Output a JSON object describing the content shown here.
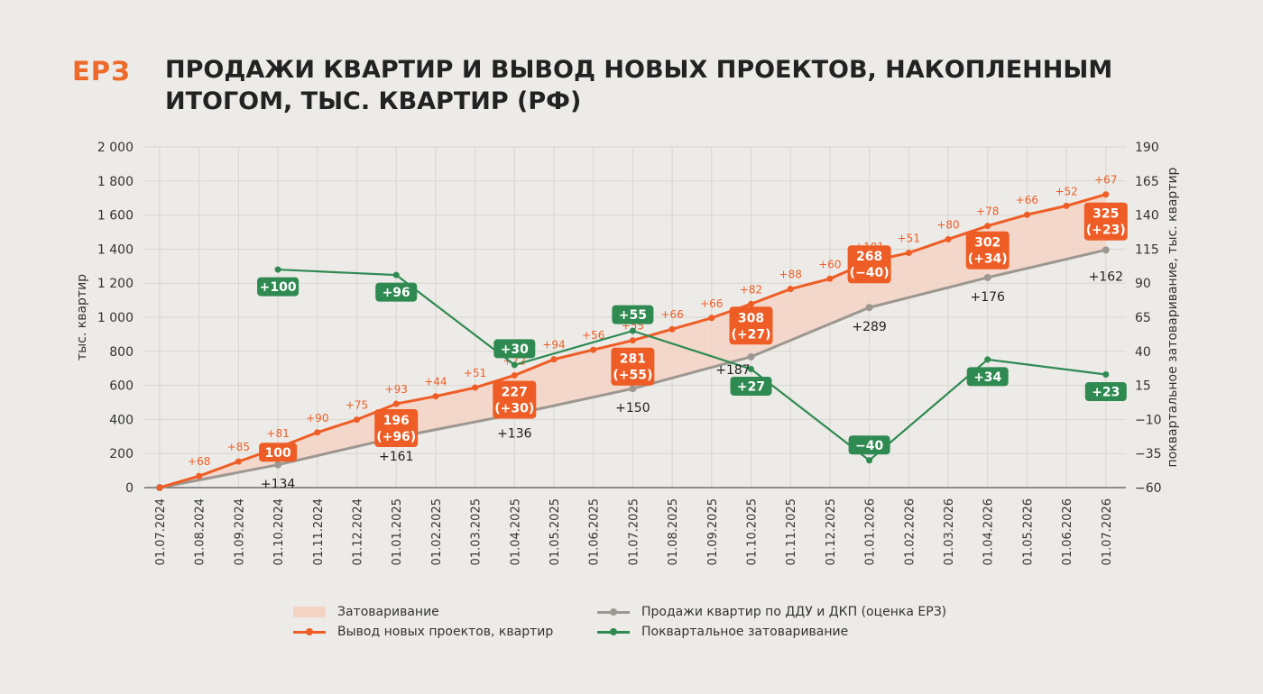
{
  "header": {
    "logo": "ЕРЗ",
    "title": "ПРОДАЖИ КВАРТИР И ВЫВОД НОВЫХ ПРОЕКТОВ, НАКОПЛЕННЫМ ИТОГОМ, ТЫС. КВАРТИР (РФ)"
  },
  "legend": {
    "overstock": "Затоваривание",
    "launches": "Вывод новых проектов, квартир",
    "sales": "Продажи квартир по ДДУ и ДКП (оценка ЕРЗ)",
    "quarterly": "Поквартальное затоваривание"
  },
  "colors": {
    "launches": "#ee5d25",
    "sales": "#9d9791",
    "quarterly": "#2f8a52",
    "fill": "#f3d3c4",
    "grid": "#d9d6d1"
  },
  "chart_data": {
    "type": "line",
    "title": "ПРОДАЖИ КВАРТИР И ВЫВОД НОВЫХ ПРОЕКТОВ, НАКОПЛЕННЫМ ИТОГОМ, ТЫС. КВАРТИР (РФ)",
    "ylabel_left": "тыс. квартир",
    "ylabel_right": "поквартальное затоваривание, тыс. квартир",
    "ylim_left": [
      0,
      2000
    ],
    "yticks_left": [
      "0",
      "200",
      "400",
      "600",
      "800",
      "1 000",
      "1 200",
      "1 400",
      "1 600",
      "1 800",
      "2 000"
    ],
    "ylim_right": [
      -60,
      190
    ],
    "yticks_right": [
      "−60",
      "−35",
      "−10",
      "15",
      "40",
      "65",
      "90",
      "115",
      "140",
      "165",
      "190"
    ],
    "grid": true,
    "legend_position": "bottom",
    "x": [
      "01.07.2024",
      "01.08.2024",
      "01.09.2024",
      "01.10.2024",
      "01.11.2024",
      "01.12.2024",
      "01.01.2025",
      "01.02.2025",
      "01.03.2025",
      "01.04.2025",
      "01.05.2025",
      "01.06.2025",
      "01.07.2025",
      "01.08.2025",
      "01.09.2025",
      "01.10.2025",
      "01.11.2025",
      "01.12.2025",
      "01.01.2026",
      "01.02.2026",
      "01.03.2026",
      "01.04.2026",
      "01.05.2026",
      "01.06.2026",
      "01.07.2026"
    ],
    "series": [
      {
        "name": "Вывод новых проектов, квартир",
        "axis": "left",
        "values": [
          0,
          68,
          153,
          234,
          324,
          399,
          492,
          536,
          587,
          659,
          753,
          809,
          864,
          930,
          996,
          1078,
          1166,
          1226,
          1327,
          1378,
          1458,
          1536,
          1602,
          1654,
          1721
        ],
        "labels": [
          null,
          "+68",
          "+85",
          "+81",
          "+90",
          "+75",
          "+93",
          "+44",
          "+51",
          "+72",
          "+94",
          "+56",
          "+55",
          "+66",
          "+66",
          "+82",
          "+88",
          "+60",
          "+101",
          "+51",
          "+80",
          "+78",
          "+66",
          "+52",
          "+67"
        ]
      },
      {
        "name": "Продажи квартир по ДДУ и ДКП (оценка ЕРЗ)",
        "axis": "left",
        "points": [
          {
            "x": "01.07.2024",
            "y": 0
          },
          {
            "x": "01.10.2024",
            "y": 134,
            "label": "+134"
          },
          {
            "x": "01.01.2025",
            "y": 295,
            "label": "+161"
          },
          {
            "x": "01.04.2025",
            "y": 431,
            "label": "+136"
          },
          {
            "x": "01.07.2025",
            "y": 581,
            "label": "+150"
          },
          {
            "x": "01.10.2025",
            "y": 768,
            "label": "+187"
          },
          {
            "x": "01.01.2026",
            "y": 1057,
            "label": "+289"
          },
          {
            "x": "01.04.2026",
            "y": 1233,
            "label": "+176"
          },
          {
            "x": "01.07.2026",
            "y": 1395,
            "label": "+162"
          }
        ]
      },
      {
        "name": "Затоваривание",
        "type": "area",
        "boxes": [
          {
            "x": "01.10.2024",
            "label": "100"
          },
          {
            "x": "01.01.2025",
            "label": "196\n(+96)"
          },
          {
            "x": "01.04.2025",
            "label": "227\n(+30)"
          },
          {
            "x": "01.07.2025",
            "label": "281\n(+55)"
          },
          {
            "x": "01.10.2025",
            "label": "308\n(+27)"
          },
          {
            "x": "01.01.2026",
            "label": "268\n(−40)"
          },
          {
            "x": "01.04.2026",
            "label": "302\n(+34)"
          },
          {
            "x": "01.07.2026",
            "label": "325\n(+23)"
          }
        ]
      },
      {
        "name": "Поквартальное затоваривание",
        "axis": "right",
        "points": [
          {
            "x": "01.10.2024",
            "y": 100,
            "label": "+100"
          },
          {
            "x": "01.01.2025",
            "y": 96,
            "label": "+96"
          },
          {
            "x": "01.04.2025",
            "y": 30,
            "label": "+30"
          },
          {
            "x": "01.07.2025",
            "y": 55,
            "label": "+55"
          },
          {
            "x": "01.10.2025",
            "y": 27,
            "label": "+27"
          },
          {
            "x": "01.01.2026",
            "y": -40,
            "label": "−40"
          },
          {
            "x": "01.04.2026",
            "y": 34,
            "label": "+34"
          },
          {
            "x": "01.07.2026",
            "y": 23,
            "label": "+23"
          }
        ]
      }
    ]
  }
}
